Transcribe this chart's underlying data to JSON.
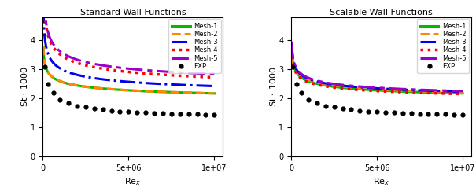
{
  "title_left": "Standard Wall Functions",
  "title_right": "Scalable Wall Functions",
  "xlabel": "Re_x",
  "ylabel": "St * 1000",
  "xlim": [
    0,
    10500000.0
  ],
  "ylim": [
    0,
    4.8
  ],
  "yticks": [
    0,
    1,
    2,
    3,
    4
  ],
  "colors": [
    "#00bb00",
    "#ff8800",
    "#0000ee",
    "#ff0000",
    "#9900cc",
    "black"
  ],
  "legend_labels": [
    "Mesh-1",
    "Mesh-2",
    "Mesh-3",
    "Mesh-4",
    "Mesh-5",
    "EXP"
  ],
  "exp_rex": [
    100000.0,
    300000.0,
    600000.0,
    1000000.0,
    1500000.0,
    2000000.0,
    2500000.0,
    3000000.0,
    3500000.0,
    4000000.0,
    4500000.0,
    5000000.0,
    5500000.0,
    6000000.0,
    6500000.0,
    7000000.0,
    7500000.0,
    8000000.0,
    8500000.0,
    9000000.0,
    9500000.0,
    10000000.0
  ],
  "exp_st": [
    3.1,
    2.5,
    2.2,
    1.95,
    1.85,
    1.75,
    1.7,
    1.65,
    1.62,
    1.58,
    1.56,
    1.54,
    1.52,
    1.51,
    1.5,
    1.49,
    1.48,
    1.47,
    1.47,
    1.46,
    1.45,
    1.44
  ],
  "swf": {
    "mesh1": {
      "A": 18.0,
      "b": 0.2,
      "c": 1.46
    },
    "mesh2": {
      "A": 20.0,
      "b": 0.21,
      "c": 1.5
    },
    "mesh3": {
      "A": 55.0,
      "b": 0.27,
      "c": 1.72
    },
    "mesh4": {
      "A": 80.0,
      "b": 0.28,
      "c": 1.85
    },
    "mesh5": {
      "A": 75.0,
      "b": 0.275,
      "c": 1.95
    }
  },
  "scwf": {
    "mesh1": {
      "A": 18.0,
      "b": 0.2,
      "c": 1.46
    },
    "mesh2": {
      "A": 18.5,
      "b": 0.2,
      "c": 1.47
    },
    "mesh3": {
      "A": 19.0,
      "b": 0.2,
      "c": 1.48
    },
    "mesh4": {
      "A": 17.5,
      "b": 0.2,
      "c": 1.46
    },
    "mesh5": {
      "A": 19.5,
      "b": 0.2,
      "c": 1.48
    }
  }
}
